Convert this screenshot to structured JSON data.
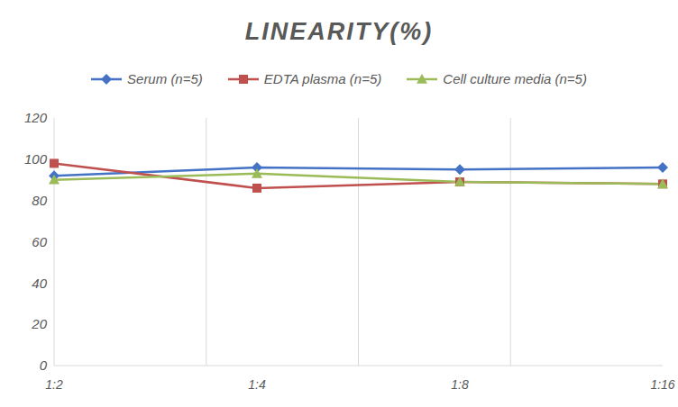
{
  "chart_data": {
    "type": "line",
    "title": "LINEARITY(%)",
    "categories": [
      "1:2",
      "1:4",
      "1:8",
      "1:16"
    ],
    "series": [
      {
        "name": "Serum (n=5)",
        "color": "#4472c4",
        "marker": "diamond",
        "values": [
          92,
          96,
          95,
          96
        ]
      },
      {
        "name": "EDTA plasma (n=5)",
        "color": "#c0504d",
        "marker": "square",
        "values": [
          98,
          86,
          89,
          88
        ]
      },
      {
        "name": "Cell culture media (n=5)",
        "color": "#9bbb59",
        "marker": "triangle",
        "values": [
          90,
          93,
          89,
          88
        ]
      }
    ],
    "ylim": [
      0,
      120
    ],
    "yticks": [
      0,
      20,
      40,
      60,
      80,
      100,
      120
    ],
    "grid": true,
    "legend": "top"
  }
}
